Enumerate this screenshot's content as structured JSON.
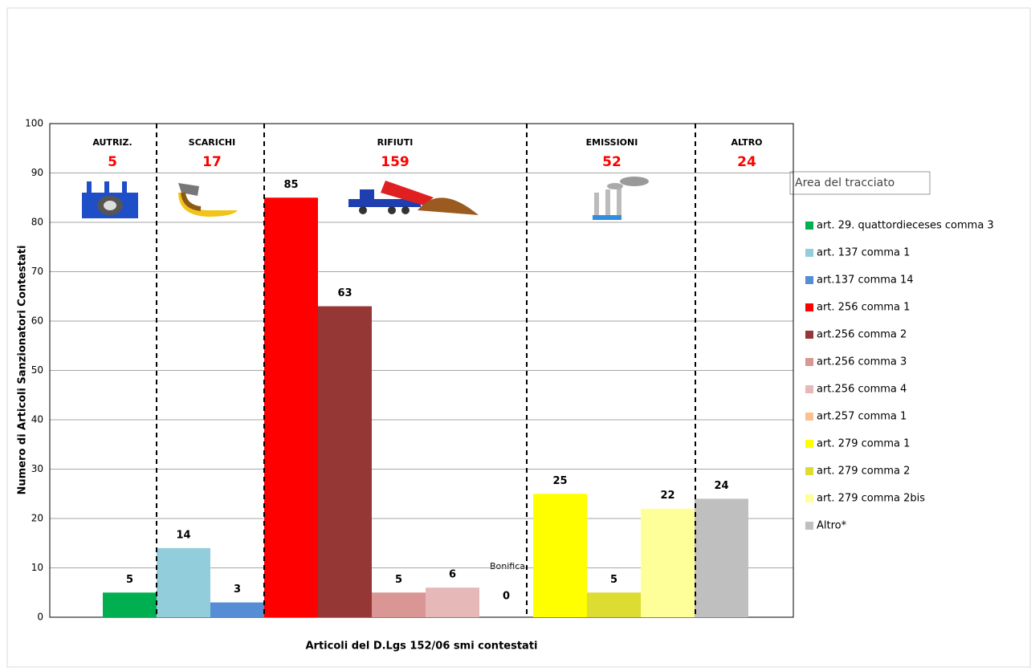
{
  "chart_data": {
    "type": "bar",
    "y_label": "Numero di Articoli  Sanzionatori Contestati",
    "x_label": "Articoli del D.Lgs 152/06 smi contestati",
    "annotation": "Bonifica",
    "tooltip": "Area del tracciato",
    "categories": [
      null
    ],
    "ylim": [
      0,
      100
    ],
    "yticks": [
      0,
      10,
      20,
      30,
      40,
      50,
      60,
      70,
      80,
      90,
      100
    ],
    "grid": true,
    "groups": [
      {
        "name": "AUTRIZ.",
        "total": 5
      },
      {
        "name": "SCARICHI",
        "total": 17
      },
      {
        "name": "RIFIUTI",
        "total": 159
      },
      {
        "name": "EMISSIONI",
        "total": 52
      },
      {
        "name": "ALTRO",
        "total": 24
      }
    ],
    "series": [
      {
        "name": "art. 29. quattordieceses comma 3",
        "color": "#00b050",
        "values": [
          5
        ]
      },
      {
        "name": "art. 137 comma 1",
        "color": "#92cddc",
        "values": [
          14
        ]
      },
      {
        "name": "art.137 comma 14",
        "color": "#558ed5",
        "values": [
          3
        ]
      },
      {
        "name": "art. 256 comma 1",
        "color": "#ff0000",
        "values": [
          85
        ]
      },
      {
        "name": "art.256 comma 2",
        "color": "#953735",
        "values": [
          63
        ]
      },
      {
        "name": "art.256 comma 3",
        "color": "#d99694",
        "values": [
          5
        ]
      },
      {
        "name": "art.256 comma 4",
        "color": "#e6b9b8",
        "values": [
          6
        ]
      },
      {
        "name": "art.257 comma 1",
        "color": "#fac090",
        "values": [
          0
        ]
      },
      {
        "name": "art. 279 comma 1",
        "color": "#ffff00",
        "values": [
          25
        ]
      },
      {
        "name": "art. 279 comma 2",
        "color": "#dcdc32",
        "values": [
          5
        ]
      },
      {
        "name": "art. 279 comma 2bis",
        "color": "#ffff99",
        "values": [
          22
        ]
      },
      {
        "name": "Altro*",
        "color": "#bfbfbf",
        "values": [
          24
        ]
      }
    ],
    "legend": "right"
  }
}
